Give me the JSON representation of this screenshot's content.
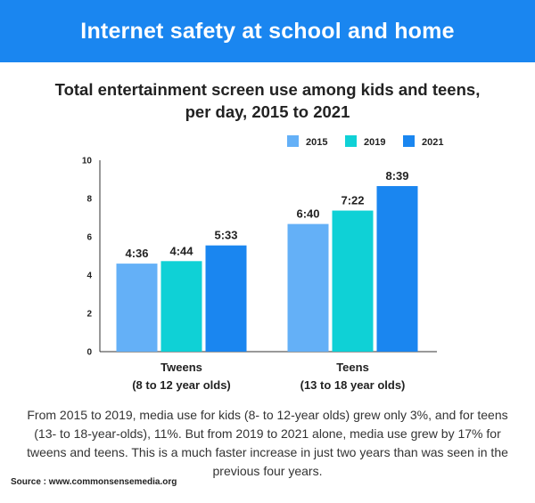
{
  "header": {
    "banner_title": "Internet safety at school and home"
  },
  "chart_data": {
    "type": "bar",
    "title": "Total entertainment screen use among kids and teens, per day, 2015 to 2021",
    "categories": [
      "Tweens",
      "Teens"
    ],
    "category_sublabels": [
      "(8 to 12 year olds)",
      "(13 to 18 year olds)"
    ],
    "series": [
      {
        "name": "2015",
        "color": "#64b0f7",
        "values": [
          4.6,
          6.67
        ],
        "labels": [
          "4:36",
          "6:40"
        ]
      },
      {
        "name": "2019",
        "color": "#0fd1d6",
        "values": [
          4.73,
          7.37
        ],
        "labels": [
          "4:44",
          "7:22"
        ]
      },
      {
        "name": "2021",
        "color": "#1a86f0",
        "values": [
          5.55,
          8.65
        ],
        "labels": [
          "5:33",
          "8:39"
        ]
      }
    ],
    "ylim": [
      0,
      10
    ],
    "yticks": [
      "0",
      "2",
      "4",
      "6",
      "8",
      "10"
    ],
    "legend": "top-right",
    "grid": false
  },
  "footer": {
    "paragraph": "From 2015 to 2019, media use for kids (8- to 12-year olds) grew only 3%, and for teens (13- to 18-year-olds), 11%. But from 2019 to 2021 alone, media use grew by 17% for tweens and teens. This is a much faster increase in just two years than was seen in the previous four years.",
    "source": "Source : www.commonsensemedia.org"
  }
}
